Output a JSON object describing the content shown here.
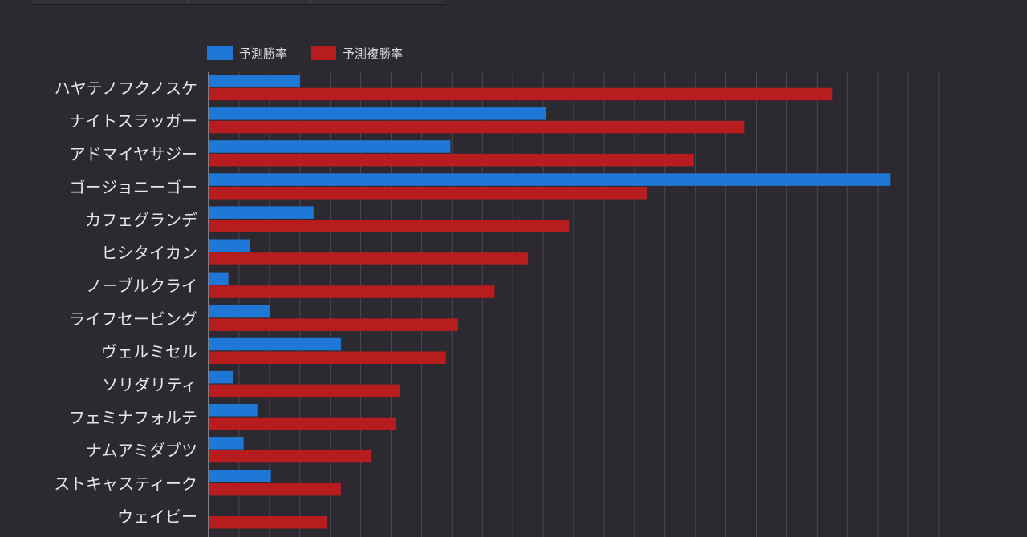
{
  "colors": {
    "background": "#2c2a30",
    "grid": "#4a4850",
    "axis": "#9c9aa2",
    "label_text": "#e8e6ea",
    "legend_text": "#d8d6dc"
  },
  "chart_data": {
    "type": "bar",
    "orientation": "horizontal",
    "categories": [
      "ハヤテノフクノスケ",
      "ナイトスラッガー",
      "アドマイヤサジー",
      "ゴージョニーゴー",
      "カフェグランデ",
      "ヒシタイカン",
      "ノーブルクライ",
      "ライフセービング",
      "ヴェルミセル",
      "ソリダリティ",
      "フェミナフォルテ",
      "ナムアミダブツ",
      "ストキャスティーク",
      "ウェイビー"
    ],
    "series": [
      {
        "name": "予測勝率",
        "color": "#1f78d6",
        "values": [
          3.0,
          11.1,
          7.95,
          22.4,
          3.45,
          1.35,
          0.65,
          2.0,
          4.35,
          0.8,
          1.6,
          1.15,
          2.05,
          0
        ]
      },
      {
        "name": "予測複勝率",
        "color": "#b71c1f",
        "values": [
          20.5,
          17.6,
          15.95,
          14.4,
          11.85,
          10.5,
          9.4,
          8.2,
          7.8,
          6.3,
          6.15,
          5.35,
          4.35,
          3.9
        ]
      }
    ],
    "xlim": [
      0,
      24
    ],
    "grid": true,
    "legend_position": "top-left"
  }
}
